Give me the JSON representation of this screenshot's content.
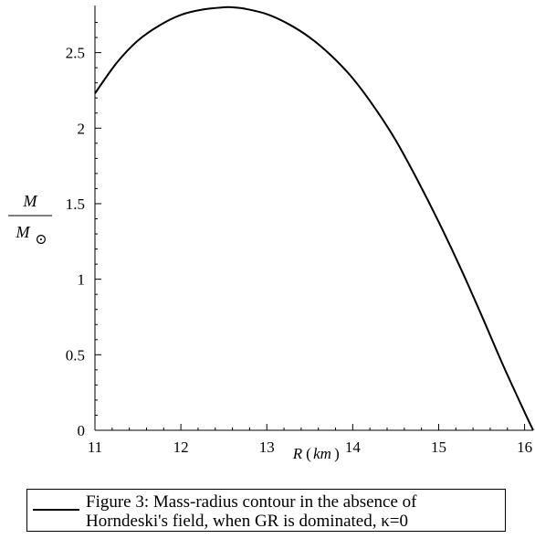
{
  "chart_data": {
    "type": "line",
    "xlabel_var": "R",
    "xlabel_unit": "km",
    "ylabel_num": "M",
    "ylabel_den": "M",
    "ylabel_den_symbol": "⊙",
    "xlim": [
      11,
      16.1
    ],
    "ylim": [
      0,
      2.8
    ],
    "x_ticks": [
      11,
      12,
      13,
      14,
      15,
      16
    ],
    "x_tick_labels": [
      "11",
      "12",
      "13",
      "14",
      "15",
      "16"
    ],
    "y_ticks": [
      0,
      0.5,
      1,
      1.5,
      2,
      2.5
    ],
    "y_tick_labels": [
      "0",
      "0.5",
      "1",
      "1.5",
      "2",
      "2.5"
    ],
    "grid": false,
    "legend_position": "bottom",
    "series": [
      {
        "name": "Figure 3: Mass-radius contour in the absence of\nHorndeski's field, when GR is dominated, κ=0",
        "color": "#000000",
        "x": [
          11.0,
          11.25,
          11.5,
          11.75,
          12.0,
          12.25,
          12.5,
          12.6,
          12.75,
          13.0,
          13.25,
          13.5,
          13.75,
          14.0,
          14.25,
          14.5,
          14.75,
          15.0,
          15.25,
          15.5,
          15.75,
          16.0,
          16.1
        ],
        "y": [
          2.23,
          2.43,
          2.58,
          2.68,
          2.75,
          2.785,
          2.8,
          2.8,
          2.79,
          2.755,
          2.69,
          2.6,
          2.48,
          2.33,
          2.14,
          1.92,
          1.66,
          1.38,
          1.08,
          0.76,
          0.43,
          0.12,
          0.0
        ]
      }
    ]
  }
}
